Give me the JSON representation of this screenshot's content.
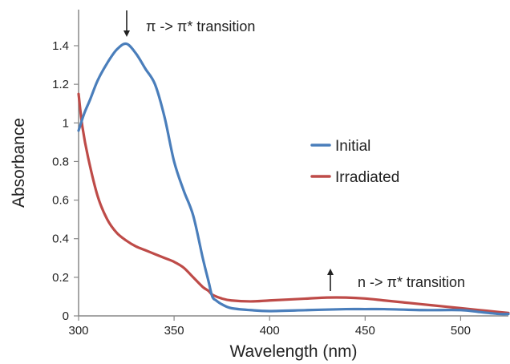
{
  "chart_data": {
    "type": "line",
    "xlabel": "Wavelength (nm)",
    "ylabel": "Absorbance",
    "xlim": [
      300,
      525
    ],
    "ylim": [
      0,
      1.55
    ],
    "x_ticks": [
      300,
      350,
      400,
      450,
      500
    ],
    "y_ticks": [
      0,
      0.2,
      0.4,
      0.6,
      0.8,
      1,
      1.2,
      1.4
    ],
    "x_tick_labels": [
      "300",
      "350",
      "400",
      "450",
      "500"
    ],
    "y_tick_labels": [
      "0",
      "0.2",
      "0.4",
      "0.6",
      "0.8",
      "1",
      "1.2",
      "1.4"
    ],
    "grid": false,
    "legend_position": "right",
    "series": [
      {
        "name": "Initial",
        "color": "#4A7EBB",
        "x": [
          300,
          303,
          306,
          310,
          315,
          320,
          325,
          330,
          335,
          340,
          345,
          350,
          355,
          360,
          365,
          368,
          370,
          372,
          375,
          380,
          390,
          400,
          420,
          440,
          450,
          460,
          480,
          500,
          510,
          520,
          525
        ],
        "y": [
          0.96,
          1.05,
          1.12,
          1.22,
          1.31,
          1.38,
          1.41,
          1.36,
          1.28,
          1.2,
          1.03,
          0.8,
          0.65,
          0.52,
          0.3,
          0.18,
          0.1,
          0.08,
          0.06,
          0.04,
          0.03,
          0.025,
          0.03,
          0.035,
          0.035,
          0.035,
          0.03,
          0.03,
          0.02,
          0.01,
          0.01
        ]
      },
      {
        "name": "Irradiated",
        "color": "#BE4B48",
        "x": [
          300,
          302,
          305,
          310,
          315,
          320,
          325,
          330,
          335,
          340,
          345,
          350,
          355,
          360,
          365,
          368,
          370,
          375,
          380,
          390,
          400,
          410,
          420,
          430,
          440,
          450,
          460,
          470,
          480,
          490,
          500,
          510,
          520,
          525
        ],
        "y": [
          1.15,
          0.98,
          0.82,
          0.62,
          0.5,
          0.43,
          0.39,
          0.36,
          0.34,
          0.32,
          0.3,
          0.28,
          0.25,
          0.2,
          0.15,
          0.13,
          0.11,
          0.09,
          0.08,
          0.075,
          0.08,
          0.085,
          0.09,
          0.095,
          0.095,
          0.09,
          0.08,
          0.07,
          0.06,
          0.05,
          0.04,
          0.03,
          0.02,
          0.015
        ]
      }
    ],
    "annotations": [
      {
        "text": "π -> π* transition",
        "arrow": "down",
        "x": 325
      },
      {
        "text": "n -> π* transition",
        "arrow": "up",
        "x": 432
      }
    ]
  }
}
